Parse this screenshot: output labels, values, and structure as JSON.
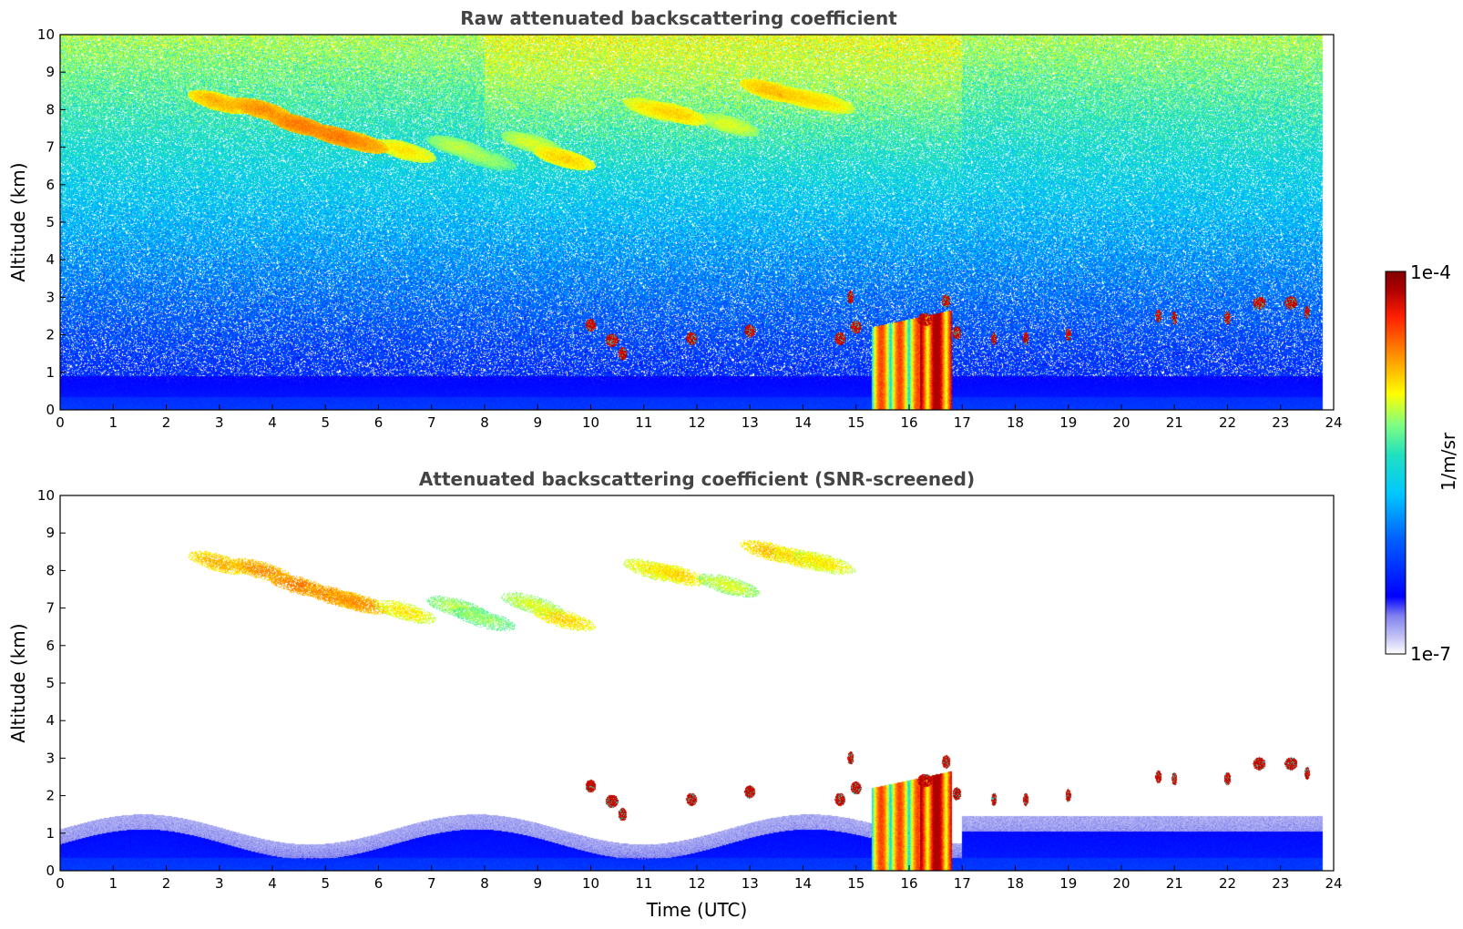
{
  "chart_data": [
    {
      "type": "heatmap",
      "title": "Raw attenuated backscattering coefficient",
      "xlabel": "",
      "ylabel": "Altitude (km)",
      "xlim": [
        0,
        24
      ],
      "ylim": [
        0,
        10
      ],
      "xticks": [
        0,
        1,
        2,
        3,
        4,
        5,
        6,
        7,
        8,
        9,
        10,
        11,
        12,
        13,
        14,
        15,
        16,
        17,
        18,
        19,
        20,
        21,
        22,
        23,
        24
      ],
      "yticks": [
        0,
        1,
        2,
        3,
        4,
        5,
        6,
        7,
        8,
        9,
        10
      ],
      "grid": false,
      "data_end_time": 23.8,
      "features": {
        "background_noise": "increasing with altitude, noisy blue-cyan-green speckle",
        "boundary_layer_top_km": 1.0,
        "cirrus_band": [
          {
            "time": 3.0,
            "altitude": 8.2
          },
          {
            "time": 5.5,
            "altitude": 7.2
          },
          {
            "time": 6.6,
            "altitude": 6.9
          },
          {
            "time": 9.5,
            "altitude": 6.6
          },
          {
            "time": 11.5,
            "altitude": 8.0
          },
          {
            "time": 14.0,
            "altitude": 8.3
          }
        ],
        "low_clouds_km": [
          {
            "time": 10.4,
            "altitude": 1.8
          },
          {
            "time": 11.9,
            "altitude": 1.9
          },
          {
            "time": 13.0,
            "altitude": 2.1
          },
          {
            "time": 15.0,
            "altitude": 2.2
          },
          {
            "time": 16.5,
            "altitude": 2.4
          },
          {
            "time": 17.7,
            "altitude": 1.9
          },
          {
            "time": 18.2,
            "altitude": 1.9
          },
          {
            "time": 19.0,
            "altitude": 2.0
          },
          {
            "time": 20.7,
            "altitude": 2.5
          },
          {
            "time": 22.0,
            "altitude": 2.4
          },
          {
            "time": 22.9,
            "altitude": 2.85
          }
        ],
        "precipitation_shaft": {
          "time_start": 15.3,
          "time_end": 16.8,
          "top_altitude": 2.3
        }
      }
    },
    {
      "type": "heatmap",
      "title": "Attenuated backscattering coefficient (SNR-screened)",
      "xlabel": "Time (UTC)",
      "ylabel": "Altitude (km)",
      "xlim": [
        0,
        24
      ],
      "ylim": [
        0,
        10
      ],
      "xticks": [
        0,
        1,
        2,
        3,
        4,
        5,
        6,
        7,
        8,
        9,
        10,
        11,
        12,
        13,
        14,
        15,
        16,
        17,
        18,
        19,
        20,
        21,
        22,
        23,
        24
      ],
      "yticks": [
        0,
        1,
        2,
        3,
        4,
        5,
        6,
        7,
        8,
        9,
        10
      ],
      "grid": false,
      "data_end_time": 23.8,
      "features": {
        "background_noise": "screened out (white) where SNR is low",
        "boundary_layer_top_km": 1.6,
        "cirrus_band": [
          {
            "time": 3.0,
            "altitude": 8.2
          },
          {
            "time": 5.5,
            "altitude": 7.2
          },
          {
            "time": 9.5,
            "altitude": 6.7
          },
          {
            "time": 14.0,
            "altitude": 8.3
          }
        ]
      }
    }
  ],
  "colorbar": {
    "label": "1/m/sr",
    "max_label": "1e-4",
    "min_label": "1e-7",
    "scale": "log",
    "range": [
      1e-07,
      0.0001
    ],
    "colormap": [
      "#ffffff",
      "#c8c8f5",
      "#8080ee",
      "#0000ff",
      "#0060ff",
      "#00c8ff",
      "#20e0c0",
      "#80ff80",
      "#ffff00",
      "#ff9000",
      "#ff2000",
      "#a00000",
      "#800000"
    ]
  }
}
